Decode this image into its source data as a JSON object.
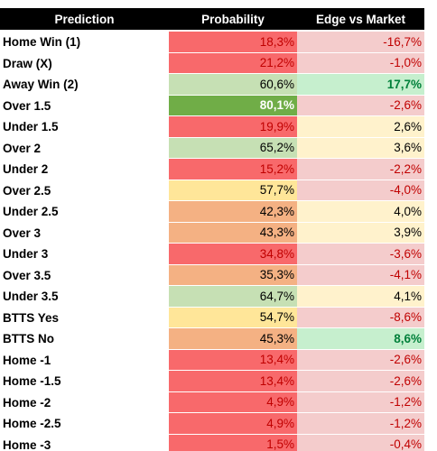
{
  "table": {
    "header": [
      "Prediction",
      "Probability",
      "Edge vs Market"
    ],
    "rows": [
      [
        "Home Win (1)",
        {
          "text": "18,3%",
          "fill": "#f8696b",
          "color": "#c00000"
        },
        {
          "text": "-16,7%",
          "fill": "#f4cccc",
          "color": "#c00000"
        }
      ],
      [
        "Draw (X)",
        {
          "text": "21,2%",
          "fill": "#f8696b",
          "color": "#c00000"
        },
        {
          "text": "-1,0%",
          "fill": "#f4cccc",
          "color": "#c00000"
        }
      ],
      [
        "Away Win (2)",
        {
          "text": "60,6%",
          "fill": "#c6e0b4",
          "color": "#000000"
        },
        {
          "text": "17,7%",
          "fill": "#c6efce",
          "color": "#00803a",
          "bold": true
        }
      ],
      [
        "Over 1.5",
        {
          "text": "80,1%",
          "fill": "#70ad47",
          "color": "#ffffff",
          "bold": true
        },
        {
          "text": "-2,6%",
          "fill": "#f4cccc",
          "color": "#c00000"
        }
      ],
      [
        "Under 1.5",
        {
          "text": "19,9%",
          "fill": "#f8696b",
          "color": "#c00000"
        },
        {
          "text": "2,6%",
          "fill": "#fff2cc",
          "color": "#000000"
        }
      ],
      [
        "Over 2",
        {
          "text": "65,2%",
          "fill": "#c6e0b4",
          "color": "#000000"
        },
        {
          "text": "3,6%",
          "fill": "#fff2cc",
          "color": "#000000"
        }
      ],
      [
        "Under 2",
        {
          "text": "15,2%",
          "fill": "#f8696b",
          "color": "#c00000"
        },
        {
          "text": "-2,2%",
          "fill": "#f4cccc",
          "color": "#c00000"
        }
      ],
      [
        "Over 2.5",
        {
          "text": "57,7%",
          "fill": "#ffe699",
          "color": "#000000"
        },
        {
          "text": "-4,0%",
          "fill": "#f4cccc",
          "color": "#c00000"
        }
      ],
      [
        "Under 2.5",
        {
          "text": "42,3%",
          "fill": "#f4b183",
          "color": "#000000"
        },
        {
          "text": "4,0%",
          "fill": "#fff2cc",
          "color": "#000000"
        }
      ],
      [
        "Over 3",
        {
          "text": "43,3%",
          "fill": "#f4b183",
          "color": "#000000"
        },
        {
          "text": "3,9%",
          "fill": "#fff2cc",
          "color": "#000000"
        }
      ],
      [
        "Under 3",
        {
          "text": "34,8%",
          "fill": "#f8696b",
          "color": "#c00000"
        },
        {
          "text": "-3,6%",
          "fill": "#f4cccc",
          "color": "#c00000"
        }
      ],
      [
        "Over 3.5",
        {
          "text": "35,3%",
          "fill": "#f4b183",
          "color": "#000000"
        },
        {
          "text": "-4,1%",
          "fill": "#f4cccc",
          "color": "#c00000"
        }
      ],
      [
        "Under 3.5",
        {
          "text": "64,7%",
          "fill": "#c6e0b4",
          "color": "#000000"
        },
        {
          "text": "4,1%",
          "fill": "#fff2cc",
          "color": "#000000"
        }
      ],
      [
        "BTTS Yes",
        {
          "text": "54,7%",
          "fill": "#ffe699",
          "color": "#000000"
        },
        {
          "text": "-8,6%",
          "fill": "#f4cccc",
          "color": "#c00000"
        }
      ],
      [
        "BTTS No",
        {
          "text": "45,3%",
          "fill": "#f4b183",
          "color": "#000000"
        },
        {
          "text": "8,6%",
          "fill": "#c6efce",
          "color": "#00803a",
          "bold": true
        }
      ],
      [
        "Home -1",
        {
          "text": "13,4%",
          "fill": "#f8696b",
          "color": "#c00000"
        },
        {
          "text": "-2,6%",
          "fill": "#f4cccc",
          "color": "#c00000"
        }
      ],
      [
        "Home -1.5",
        {
          "text": "13,4%",
          "fill": "#f8696b",
          "color": "#c00000"
        },
        {
          "text": "-2,6%",
          "fill": "#f4cccc",
          "color": "#c00000"
        }
      ],
      [
        "Home -2",
        {
          "text": "4,9%",
          "fill": "#f8696b",
          "color": "#c00000"
        },
        {
          "text": "-1,2%",
          "fill": "#f4cccc",
          "color": "#c00000"
        }
      ],
      [
        "Home -2.5",
        {
          "text": "4,9%",
          "fill": "#f8696b",
          "color": "#c00000"
        },
        {
          "text": "-1,2%",
          "fill": "#f4cccc",
          "color": "#c00000"
        }
      ],
      [
        "Home -3",
        {
          "text": "1,5%",
          "fill": "#f8696b",
          "color": "#c00000"
        },
        {
          "text": "-0,4%",
          "fill": "#f4cccc",
          "color": "#c00000"
        }
      ]
    ]
  }
}
